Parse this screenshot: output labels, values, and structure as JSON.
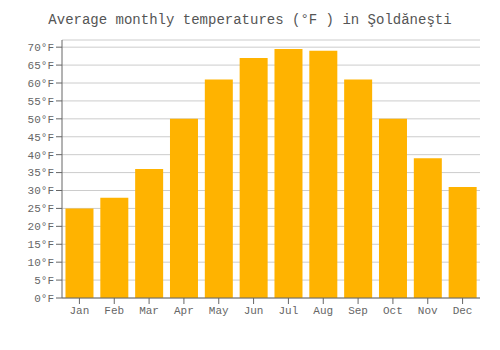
{
  "chart_data": {
    "type": "bar",
    "title": "Average monthly temperatures (°F ) in Şoldăneşti",
    "categories": [
      "Jan",
      "Feb",
      "Mar",
      "Apr",
      "May",
      "Jun",
      "Jul",
      "Aug",
      "Sep",
      "Oct",
      "Nov",
      "Dec"
    ],
    "values": [
      25,
      28,
      36,
      50,
      61,
      67,
      69.5,
      69,
      61,
      50,
      39,
      31
    ],
    "color": "#FFB300",
    "ylim": [
      0,
      72
    ],
    "yticks": [
      {
        "value": 0,
        "label": "0°F"
      },
      {
        "value": 5,
        "label": "5°F"
      },
      {
        "value": 10,
        "label": "10°F"
      },
      {
        "value": 15,
        "label": "15°F"
      },
      {
        "value": 20,
        "label": "20°F"
      },
      {
        "value": 25,
        "label": "25°F"
      },
      {
        "value": 30,
        "label": "30°F"
      },
      {
        "value": 35,
        "label": "35°F"
      },
      {
        "value": 40,
        "label": "40°F"
      },
      {
        "value": 45,
        "label": "45°F"
      },
      {
        "value": 50,
        "label": "50°F"
      },
      {
        "value": 55,
        "label": "55°F"
      },
      {
        "value": 60,
        "label": "60°F"
      },
      {
        "value": 65,
        "label": "65°F"
      },
      {
        "value": 70,
        "label": "70°F"
      }
    ],
    "grid": true
  }
}
